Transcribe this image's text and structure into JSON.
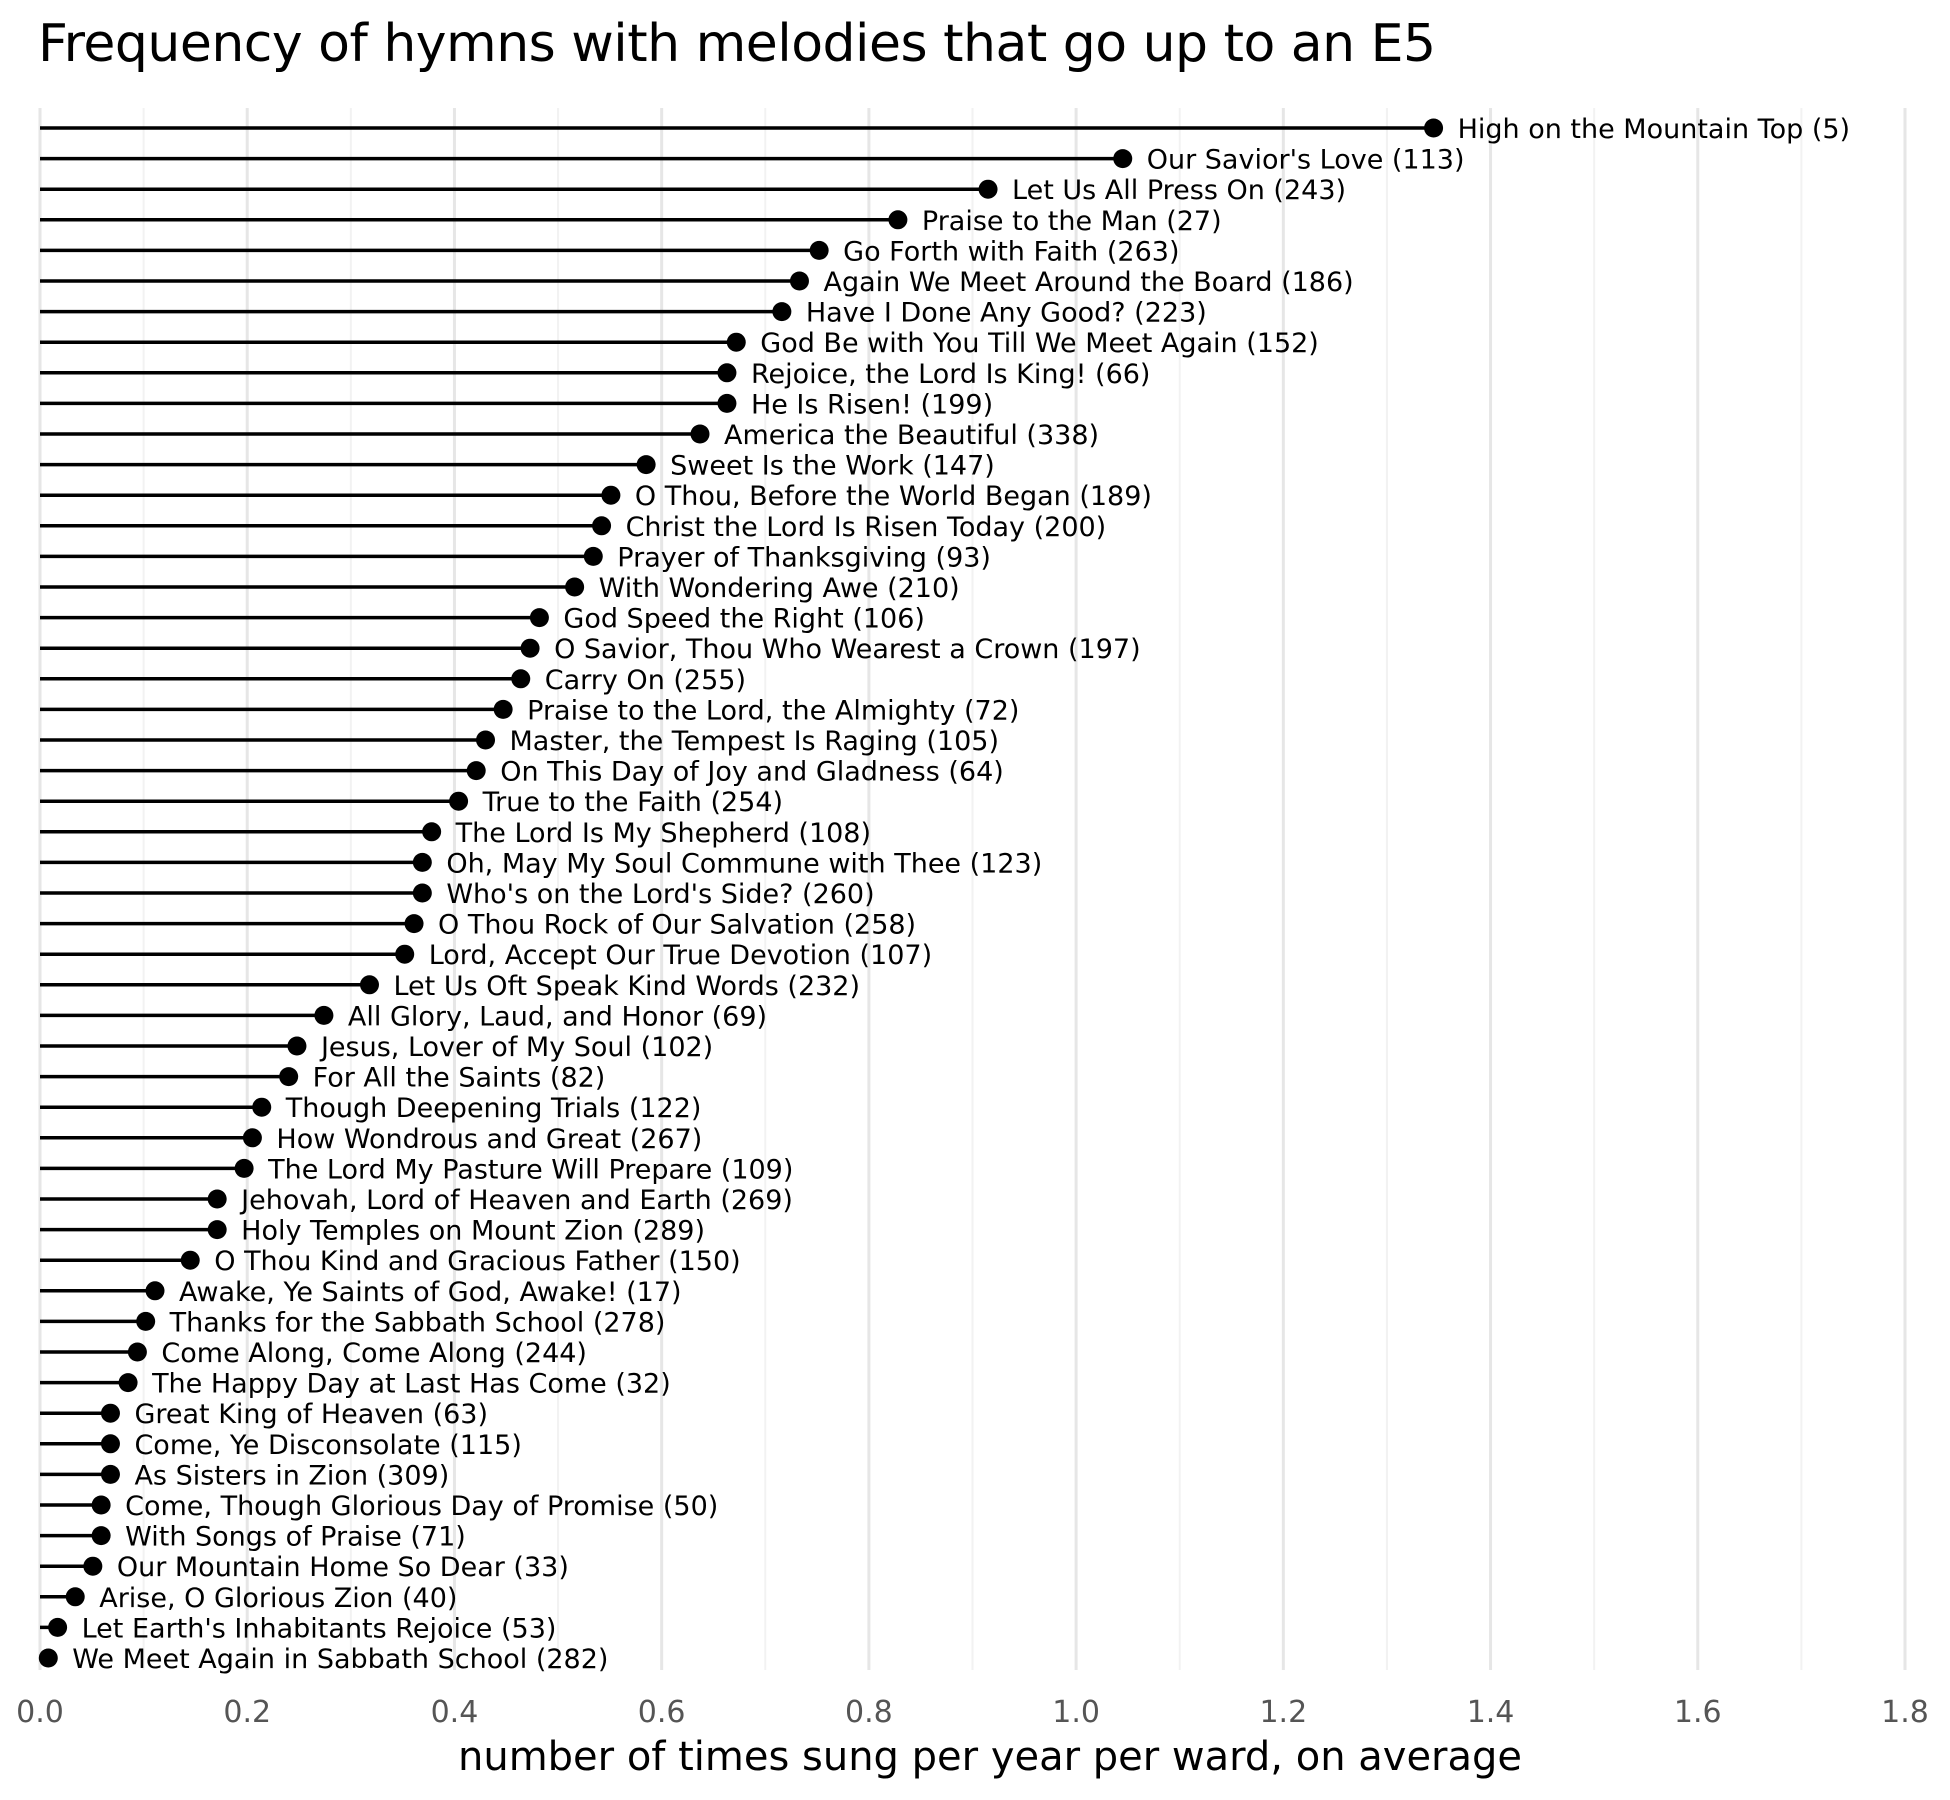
{
  "chart_data": {
    "type": "lollipop",
    "title": "Frequency of hymns with melodies that go up to an E5",
    "xlabel": "number of times sung per year per ward, on average",
    "ylabel": "",
    "xlim": [
      0,
      1.8
    ],
    "xticks": [
      "0.0",
      "0.2",
      "0.4",
      "0.6",
      "0.8",
      "1.0",
      "1.2",
      "1.4",
      "1.6",
      "1.8"
    ],
    "grid": "vertical",
    "series": [
      {
        "label": "High on the Mountain Top (5)",
        "value": 1.345
      },
      {
        "label": "Our Savior's Love (113)",
        "value": 1.045
      },
      {
        "label": "Let Us All Press On (243)",
        "value": 0.915
      },
      {
        "label": "Praise to the Man (27)",
        "value": 0.828
      },
      {
        "label": "Go Forth with Faith (263)",
        "value": 0.752
      },
      {
        "label": "Again We Meet Around the Board (186)",
        "value": 0.733
      },
      {
        "label": "Have I Done Any Good? (223)",
        "value": 0.716
      },
      {
        "label": "God Be with You Till We Meet Again (152)",
        "value": 0.672
      },
      {
        "label": "Rejoice, the Lord Is King! (66)",
        "value": 0.663
      },
      {
        "label": "He Is Risen! (199)",
        "value": 0.663
      },
      {
        "label": "America the Beautiful (338)",
        "value": 0.637
      },
      {
        "label": "Sweet Is the Work (147)",
        "value": 0.585
      },
      {
        "label": "O Thou, Before the World Began (189)",
        "value": 0.551
      },
      {
        "label": "Christ the Lord Is Risen Today (200)",
        "value": 0.542
      },
      {
        "label": "Prayer of Thanksgiving (93)",
        "value": 0.534
      },
      {
        "label": "With Wondering Awe (210)",
        "value": 0.516
      },
      {
        "label": "God Speed the Right (106)",
        "value": 0.482
      },
      {
        "label": "O Savior, Thou Who Wearest a Crown (197)",
        "value": 0.473
      },
      {
        "label": "Carry On (255)",
        "value": 0.464
      },
      {
        "label": "Praise to the Lord, the Almighty (72)",
        "value": 0.447
      },
      {
        "label": "Master, the Tempest Is Raging (105)",
        "value": 0.43
      },
      {
        "label": "On This Day of Joy and Gladness (64)",
        "value": 0.421
      },
      {
        "label": "True to the Faith (254)",
        "value": 0.404
      },
      {
        "label": "The Lord Is My Shepherd (108)",
        "value": 0.378
      },
      {
        "label": "Oh, May My Soul Commune with Thee (123)",
        "value": 0.369
      },
      {
        "label": "Who's on the Lord's Side? (260)",
        "value": 0.369
      },
      {
        "label": "O Thou Rock of Our Salvation (258)",
        "value": 0.361
      },
      {
        "label": "Lord, Accept Our True Devotion (107)",
        "value": 0.352
      },
      {
        "label": "Let Us Oft Speak Kind Words (232)",
        "value": 0.318
      },
      {
        "label": "All Glory, Laud, and Honor (69)",
        "value": 0.274
      },
      {
        "label": "Jesus, Lover of My Soul (102)",
        "value": 0.248
      },
      {
        "label": "For All the Saints (82)",
        "value": 0.24
      },
      {
        "label": "Though Deepening Trials (122)",
        "value": 0.214
      },
      {
        "label": "How Wondrous and Great (267)",
        "value": 0.205
      },
      {
        "label": "The Lord My Pasture Will Prepare (109)",
        "value": 0.197
      },
      {
        "label": "Jehovah, Lord of Heaven and Earth (269)",
        "value": 0.171
      },
      {
        "label": "Holy Temples on Mount Zion (289)",
        "value": 0.171
      },
      {
        "label": "O Thou Kind and Gracious Father (150)",
        "value": 0.145
      },
      {
        "label": "Awake, Ye Saints of God, Awake! (17)",
        "value": 0.111
      },
      {
        "label": "Thanks for the Sabbath School (278)",
        "value": 0.102
      },
      {
        "label": "Come Along, Come Along (244)",
        "value": 0.094
      },
      {
        "label": "The Happy Day at Last Has Come (32)",
        "value": 0.085
      },
      {
        "label": "Great King of Heaven (63)",
        "value": 0.068
      },
      {
        "label": "Come, Ye Disconsolate (115)",
        "value": 0.068
      },
      {
        "label": "As Sisters in Zion (309)",
        "value": 0.068
      },
      {
        "label": "Come, Though Glorious Day of Promise (50)",
        "value": 0.059
      },
      {
        "label": "With Songs of Praise (71)",
        "value": 0.059
      },
      {
        "label": "Our Mountain Home So Dear (33)",
        "value": 0.051
      },
      {
        "label": "Arise, O Glorious Zion (40)",
        "value": 0.034
      },
      {
        "label": "Let Earth's Inhabitants Rejoice (53)",
        "value": 0.017
      },
      {
        "label": "We Meet Again in Sabbath School (282)",
        "value": 0.008
      }
    ],
    "colors": {
      "lollipop": "#000000",
      "grid_major": "#e6e6e6",
      "grid_minor": "#f2f2f2",
      "tick_text": "#555555"
    }
  }
}
